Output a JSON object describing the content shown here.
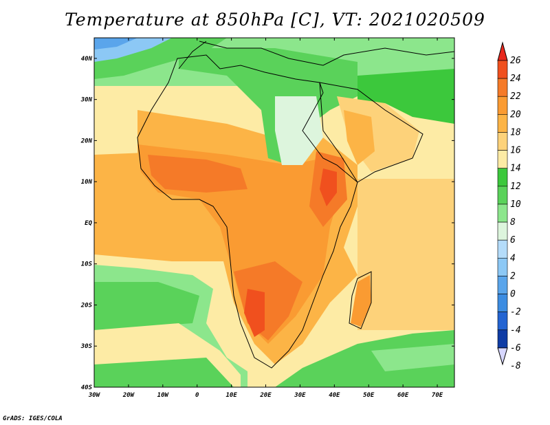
{
  "title": "Temperature at 850hPa [C], VT: 2021020509",
  "credit": "GrADS: IGES/COLA",
  "map": {
    "lon_range": [
      -30,
      75
    ],
    "lat_range": [
      -40,
      45
    ],
    "lon_ticks": [
      "30W",
      "20W",
      "10W",
      "0",
      "10E",
      "20E",
      "30E",
      "40E",
      "50E",
      "60E",
      "70E"
    ],
    "lat_ticks": [
      "40N",
      "30N",
      "20N",
      "10N",
      "EQ",
      "10S",
      "20S",
      "30S",
      "40S"
    ]
  },
  "colorbar": {
    "labels": [
      "26",
      "24",
      "22",
      "20",
      "18",
      "16",
      "14",
      "12",
      "10",
      "8",
      "6",
      "4",
      "2",
      "0",
      "-2",
      "-4",
      "-6",
      "-8"
    ],
    "colors": [
      "#e8281e",
      "#f0501e",
      "#f57a28",
      "#fa9b32",
      "#fcb446",
      "#fdd27a",
      "#fdeba5",
      "#3cc83c",
      "#5ad25a",
      "#8ce68c",
      "#ddf5dd",
      "#b4dcfa",
      "#8cc8f5",
      "#5aa5eb",
      "#3c8ce1",
      "#2364d2",
      "#0f3ca5",
      "#0a1e78"
    ]
  }
}
